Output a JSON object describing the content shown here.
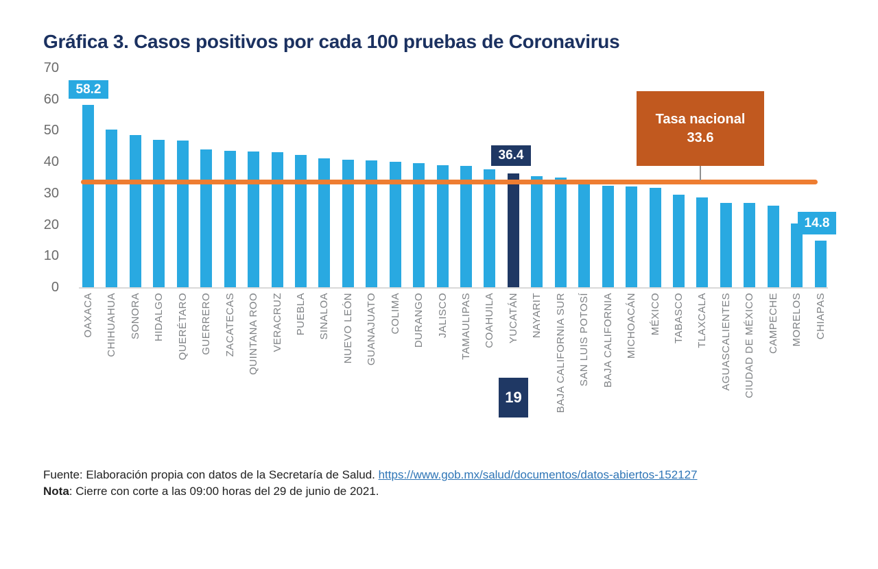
{
  "title": "Gráfica 3. Casos positivos por cada 100 pruebas de Coronavirus",
  "chart_data": {
    "type": "bar",
    "title": "Gráfica 3. Casos positivos por cada 100 pruebas de Coronavirus",
    "categories": [
      "OAXACA",
      "CHIHUAHUA",
      "SONORA",
      "HIDALGO",
      "QUERÉTARO",
      "GUERRERO",
      "ZACATECAS",
      "QUINTANA ROO",
      "VERACRUZ",
      "PUEBLA",
      "SINALOA",
      "NUEVO LEÓN",
      "GUANAJUATO",
      "COLIMA",
      "DURANGO",
      "JALISCO",
      "TAMAULIPAS",
      "COAHUILA",
      "YUCATÁN",
      "NAYARIT",
      "BAJA CALIFORNIA SUR",
      "SAN LUIS POTOSÍ",
      "BAJA CALIFORNIA",
      "MICHOACÁN",
      "MÉXICO",
      "TABASCO",
      "TLAXCALA",
      "AGUASCALIENTES",
      "CIUDAD DE MÉXICO",
      "CAMPECHE",
      "MORELOS",
      "CHIAPAS"
    ],
    "values": [
      58.2,
      50.3,
      48.5,
      47.0,
      46.9,
      44.0,
      43.5,
      43.3,
      43.0,
      42.3,
      41.2,
      40.6,
      40.4,
      40.0,
      39.6,
      39.0,
      38.8,
      37.7,
      36.4,
      35.5,
      34.9,
      34.2,
      32.4,
      32.2,
      31.7,
      29.5,
      28.7,
      27.0,
      26.9,
      26.1,
      20.3,
      14.8
    ],
    "xlabel": "",
    "ylabel": "",
    "ylim": [
      0,
      70
    ],
    "yticks": [
      0,
      10,
      20,
      30,
      40,
      50,
      60,
      70
    ],
    "grid": "off",
    "highlight_index": 18,
    "reference_line": {
      "value": 33.6,
      "label": "Tasa nacional"
    },
    "value_labels": [
      {
        "category": "OAXACA",
        "text": "58.2"
      },
      {
        "category": "YUCATÁN",
        "text": "36.4"
      },
      {
        "category": "CHIAPAS",
        "text": "14.8"
      }
    ],
    "rank_label": {
      "category": "YUCATÁN",
      "text": "19"
    },
    "colors": {
      "bar": "#29A9E1",
      "highlight_bar": "#1F3864",
      "reference_line": "#EE7D31",
      "callout_background": "#C1591F",
      "title": "#1B3160"
    }
  },
  "callout": {
    "line1": "Tasa nacional",
    "line2": "33.6"
  },
  "badges": {
    "max_value": "58.2",
    "yucatan_value": "36.4",
    "min_value": "14.8",
    "yucatan_rank": "19"
  },
  "footer": {
    "fuente_prefix": "Fuente: Elaboración propia con datos de la Secretaría de Salud. ",
    "link_text": "https://www.gob.mx/salud/documentos/datos-abiertos-152127",
    "nota_bold": "Nota",
    "nota_rest": ": Cierre con corte a las 09:00 horas del 29 de junio de 2021."
  }
}
